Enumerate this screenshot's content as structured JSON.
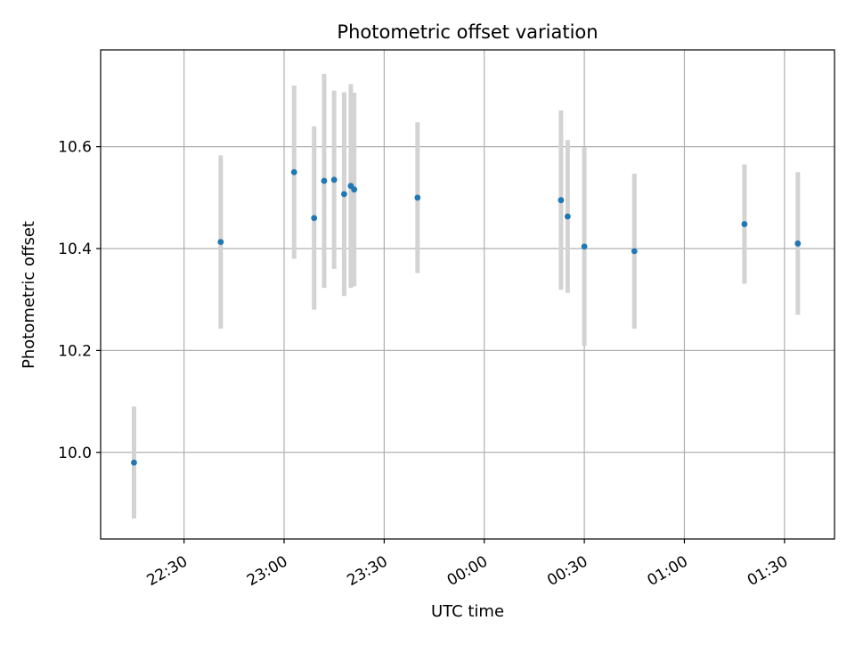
{
  "chart_data": {
    "type": "scatter",
    "title": "Photometric offset variation",
    "xlabel": "UTC time",
    "ylabel": "Photometric offset",
    "x_tick_labels": [
      "22:30",
      "23:00",
      "23:30",
      "00:00",
      "00:30",
      "01:00",
      "01:30"
    ],
    "y_tick_labels": [
      "10.0",
      "10.2",
      "10.4",
      "10.6"
    ],
    "y_ticks": [
      10.0,
      10.2,
      10.4,
      10.6
    ],
    "xlim": [
      "22:05",
      "01:45"
    ],
    "ylim": [
      9.83,
      10.79
    ],
    "grid": true,
    "legend": "none",
    "colors": {
      "point": "#1f77b4",
      "errorbar": "#d3d3d3",
      "grid": "#b0b0b0"
    },
    "series": [
      {
        "points": [
          {
            "x": "22:15",
            "y": 9.98,
            "err": 0.11
          },
          {
            "x": "22:41",
            "y": 10.413,
            "err": 0.17
          },
          {
            "x": "23:03",
            "y": 10.55,
            "err": 0.17
          },
          {
            "x": "23:09",
            "y": 10.46,
            "err": 0.18
          },
          {
            "x": "23:12",
            "y": 10.533,
            "err": 0.21
          },
          {
            "x": "23:15",
            "y": 10.535,
            "err": 0.175
          },
          {
            "x": "23:18",
            "y": 10.507,
            "err": 0.2
          },
          {
            "x": "23:20",
            "y": 10.523,
            "err": 0.2
          },
          {
            "x": "23:21",
            "y": 10.516,
            "err": 0.19
          },
          {
            "x": "23:40",
            "y": 10.5,
            "err": 0.148
          },
          {
            "x": "00:23",
            "y": 10.495,
            "err": 0.176
          },
          {
            "x": "00:25",
            "y": 10.463,
            "err": 0.15
          },
          {
            "x": "00:30",
            "y": 10.404,
            "err": 0.195
          },
          {
            "x": "00:45",
            "y": 10.395,
            "err": 0.152
          },
          {
            "x": "01:18",
            "y": 10.448,
            "err": 0.117
          },
          {
            "x": "01:34",
            "y": 10.41,
            "err": 0.14
          }
        ]
      }
    ]
  }
}
